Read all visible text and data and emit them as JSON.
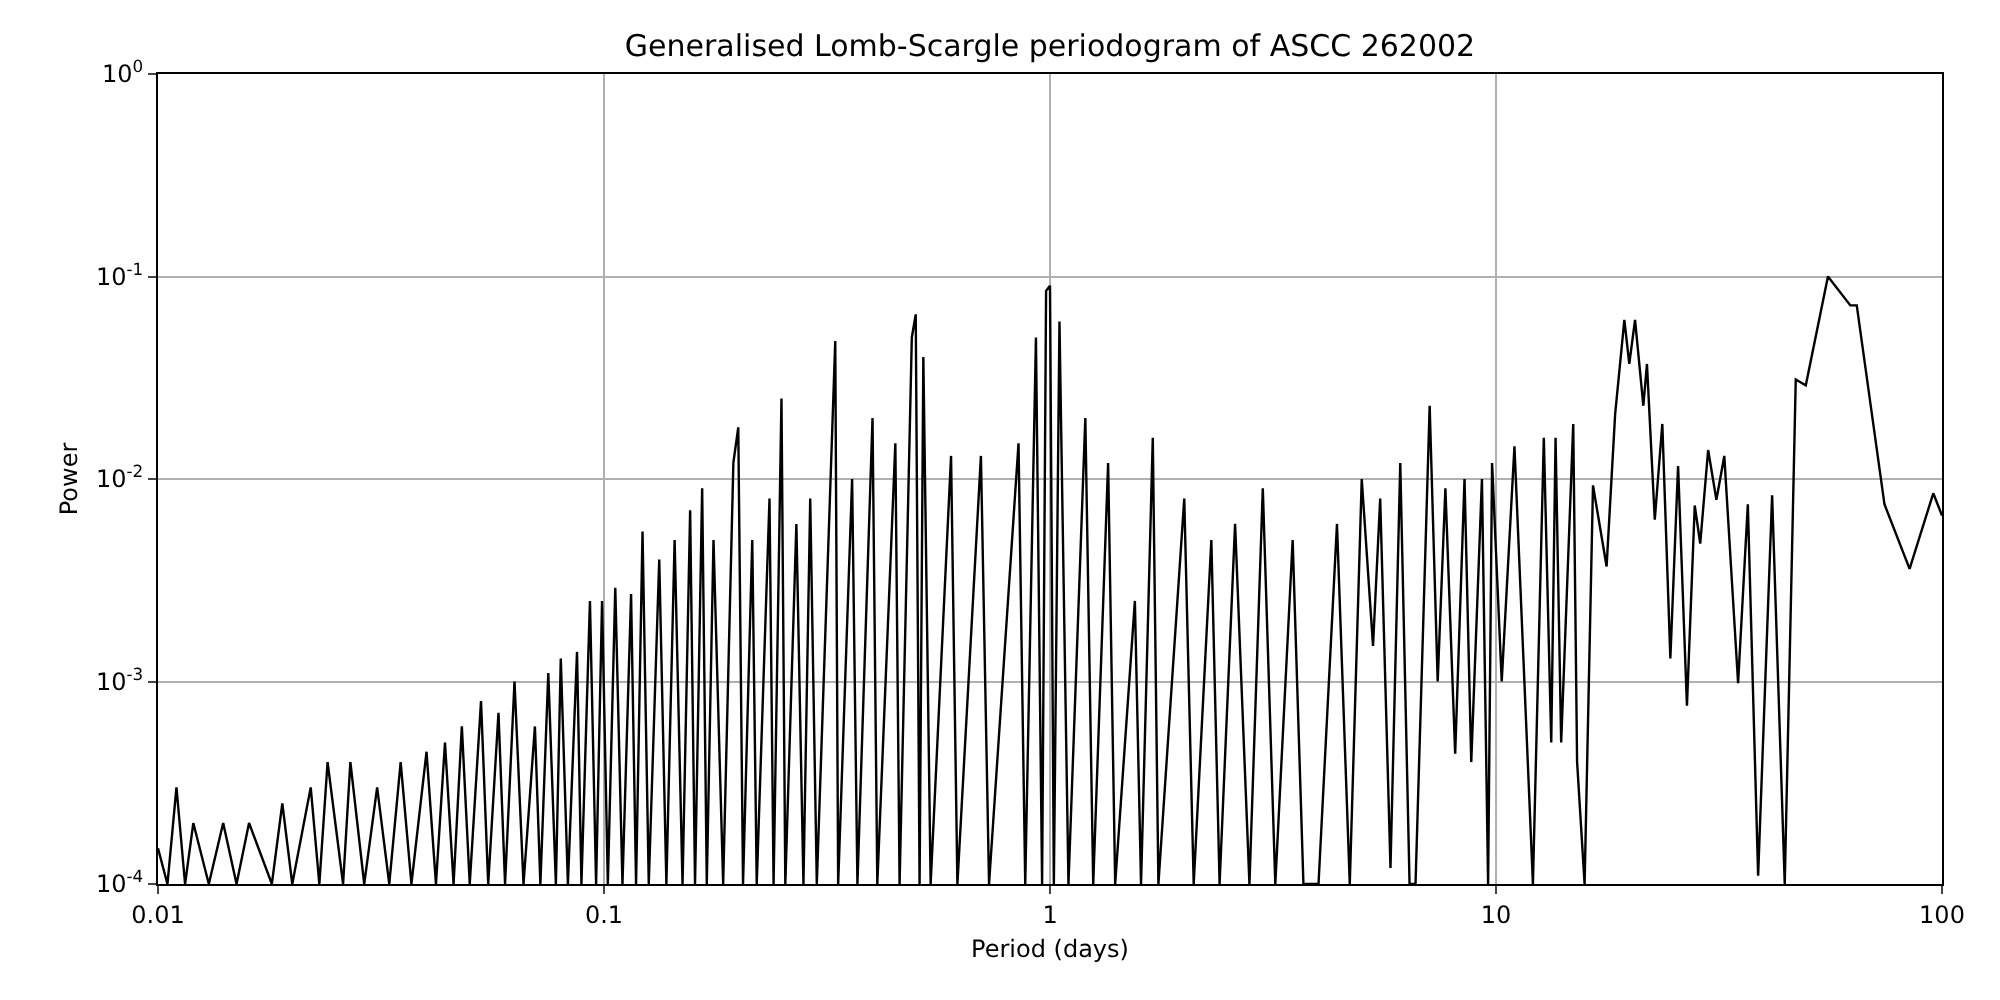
{
  "chart_data": {
    "type": "line",
    "title": "Generalised Lomb-Scargle periodogram of ASCC 262002",
    "xlabel": "Period (days)",
    "ylabel": "Power",
    "log": "xy",
    "grid": true,
    "marker": "none",
    "line_style": "solid",
    "xlim": [
      0.01,
      100
    ],
    "ylim": [
      0.0001,
      1
    ],
    "xticks": [
      {
        "value": 0.01,
        "label": "0.01"
      },
      {
        "value": 0.1,
        "label": "0.1"
      },
      {
        "value": 1,
        "label": "1"
      },
      {
        "value": 10,
        "label": "10"
      },
      {
        "value": 100,
        "label": "100"
      }
    ],
    "yticks": [
      {
        "value": 0.0001,
        "label": "10$^{-4}$"
      },
      {
        "value": 0.001,
        "label": "10$^{-3}$"
      },
      {
        "value": 0.01,
        "label": "10$^{-2}$"
      },
      {
        "value": 0.1,
        "label": "10$^{-1}$"
      },
      {
        "value": 1,
        "label": "10$^{0}$"
      }
    ],
    "series": [
      {
        "color": "#000000",
        "x": [
          0.01,
          0.0105,
          0.011,
          0.0115,
          0.012,
          0.013,
          0.014,
          0.015,
          0.016,
          0.018,
          0.019,
          0.02,
          0.022,
          0.023,
          0.024,
          0.026,
          0.027,
          0.029,
          0.031,
          0.033,
          0.035,
          0.037,
          0.04,
          0.042,
          0.044,
          0.046,
          0.048,
          0.05,
          0.053,
          0.055,
          0.058,
          0.06,
          0.063,
          0.066,
          0.07,
          0.072,
          0.075,
          0.078,
          0.08,
          0.083,
          0.087,
          0.089,
          0.093,
          0.096,
          0.099,
          0.102,
          0.106,
          0.11,
          0.115,
          0.118,
          0.122,
          0.126,
          0.133,
          0.138,
          0.144,
          0.15,
          0.156,
          0.16,
          0.166,
          0.17,
          0.176,
          0.185,
          0.195,
          0.2,
          0.205,
          0.215,
          0.22,
          0.235,
          0.24,
          0.25,
          0.255,
          0.27,
          0.28,
          0.29,
          0.3,
          0.33,
          0.335,
          0.36,
          0.37,
          0.4,
          0.41,
          0.45,
          0.46,
          0.49,
          0.5,
          0.51,
          0.52,
          0.54,
          0.6,
          0.62,
          0.7,
          0.73,
          0.85,
          0.88,
          0.93,
          0.96,
          0.98,
          1.0,
          1.02,
          1.05,
          1.1,
          1.2,
          1.25,
          1.35,
          1.4,
          1.55,
          1.6,
          1.7,
          1.75,
          2.0,
          2.1,
          2.3,
          2.4,
          2.6,
          2.8,
          3.0,
          3.2,
          3.5,
          3.7,
          4.0,
          4.4,
          4.7,
          5.0,
          5.3,
          5.5,
          5.8,
          6.1,
          6.4,
          6.6,
          7.1,
          7.4,
          7.7,
          8.1,
          8.5,
          8.8,
          9.3,
          9.6,
          9.8,
          10.3,
          11.0,
          12.1,
          12.8,
          13.3,
          13.6,
          14.0,
          14.9,
          15.2,
          15.8,
          16.5,
          17.7,
          18.5,
          19.4,
          19.9,
          20.5,
          21.4,
          21.8,
          22.7,
          23.6,
          24.6,
          25.6,
          26.8,
          27.9,
          28.7,
          29.9,
          31.2,
          32.5,
          34.9,
          36.7,
          38.7,
          41.6,
          44.4,
          47.0,
          49.5,
          55.5,
          62.3,
          64.4,
          74.3,
          84.6,
          95.6,
          100
        ],
        "values": [
          0.00015,
          0.0001,
          0.0003,
          0.0001,
          0.0002,
          0.0001,
          0.0002,
          0.0001,
          0.0002,
          0.0001,
          0.00025,
          0.0001,
          0.0003,
          0.0001,
          0.0004,
          0.0001,
          0.0004,
          0.0001,
          0.0003,
          0.0001,
          0.0004,
          0.0001,
          0.00045,
          0.0001,
          0.0005,
          0.0001,
          0.0006,
          0.0001,
          0.0008,
          0.0001,
          0.0007,
          0.0001,
          0.001,
          0.0001,
          0.0006,
          0.0001,
          0.0011,
          0.0001,
          0.0013,
          0.0001,
          0.0014,
          0.0001,
          0.0025,
          0.0001,
          0.0025,
          0.0001,
          0.0029,
          0.0001,
          0.0027,
          0.0001,
          0.0055,
          0.0001,
          0.004,
          0.0001,
          0.005,
          0.0001,
          0.007,
          0.0001,
          0.009,
          0.0001,
          0.005,
          0.0001,
          0.012,
          0.018,
          0.0001,
          0.005,
          0.0001,
          0.008,
          0.0001,
          0.025,
          0.0001,
          0.006,
          0.0001,
          0.008,
          0.0001,
          0.048,
          0.0001,
          0.01,
          0.0001,
          0.02,
          0.0001,
          0.015,
          0.0001,
          0.05,
          0.065,
          0.0001,
          0.04,
          0.0001,
          0.013,
          0.0001,
          0.013,
          0.0001,
          0.015,
          0.0001,
          0.05,
          0.0001,
          0.085,
          0.09,
          0.0001,
          0.06,
          0.0001,
          0.02,
          0.0001,
          0.012,
          0.0001,
          0.0025,
          0.0001,
          0.016,
          0.0001,
          0.008,
          0.0001,
          0.005,
          0.0001,
          0.006,
          0.0001,
          0.009,
          0.0001,
          0.005,
          0.0001,
          0.0001,
          0.006,
          0.0001,
          0.01,
          0.0015,
          0.008,
          0.00012,
          0.012,
          0.0001,
          0.0001,
          0.023,
          0.001,
          0.009,
          0.00044,
          0.01,
          0.0004,
          0.01,
          0.0001,
          0.012,
          0.001,
          0.0145,
          0.0001,
          0.016,
          0.0005,
          0.016,
          0.0005,
          0.0187,
          0.0004,
          0.0001,
          0.0093,
          0.0037,
          0.021,
          0.061,
          0.037,
          0.061,
          0.023,
          0.037,
          0.0063,
          0.0187,
          0.0013,
          0.0116,
          0.00076,
          0.0074,
          0.0048,
          0.0139,
          0.0079,
          0.013,
          0.00098,
          0.0075,
          0.00011,
          0.0083,
          0.0001,
          0.031,
          0.029,
          0.1,
          0.072,
          0.072,
          0.0075,
          0.0036,
          0.0085,
          0.0066
        ]
      }
    ]
  }
}
